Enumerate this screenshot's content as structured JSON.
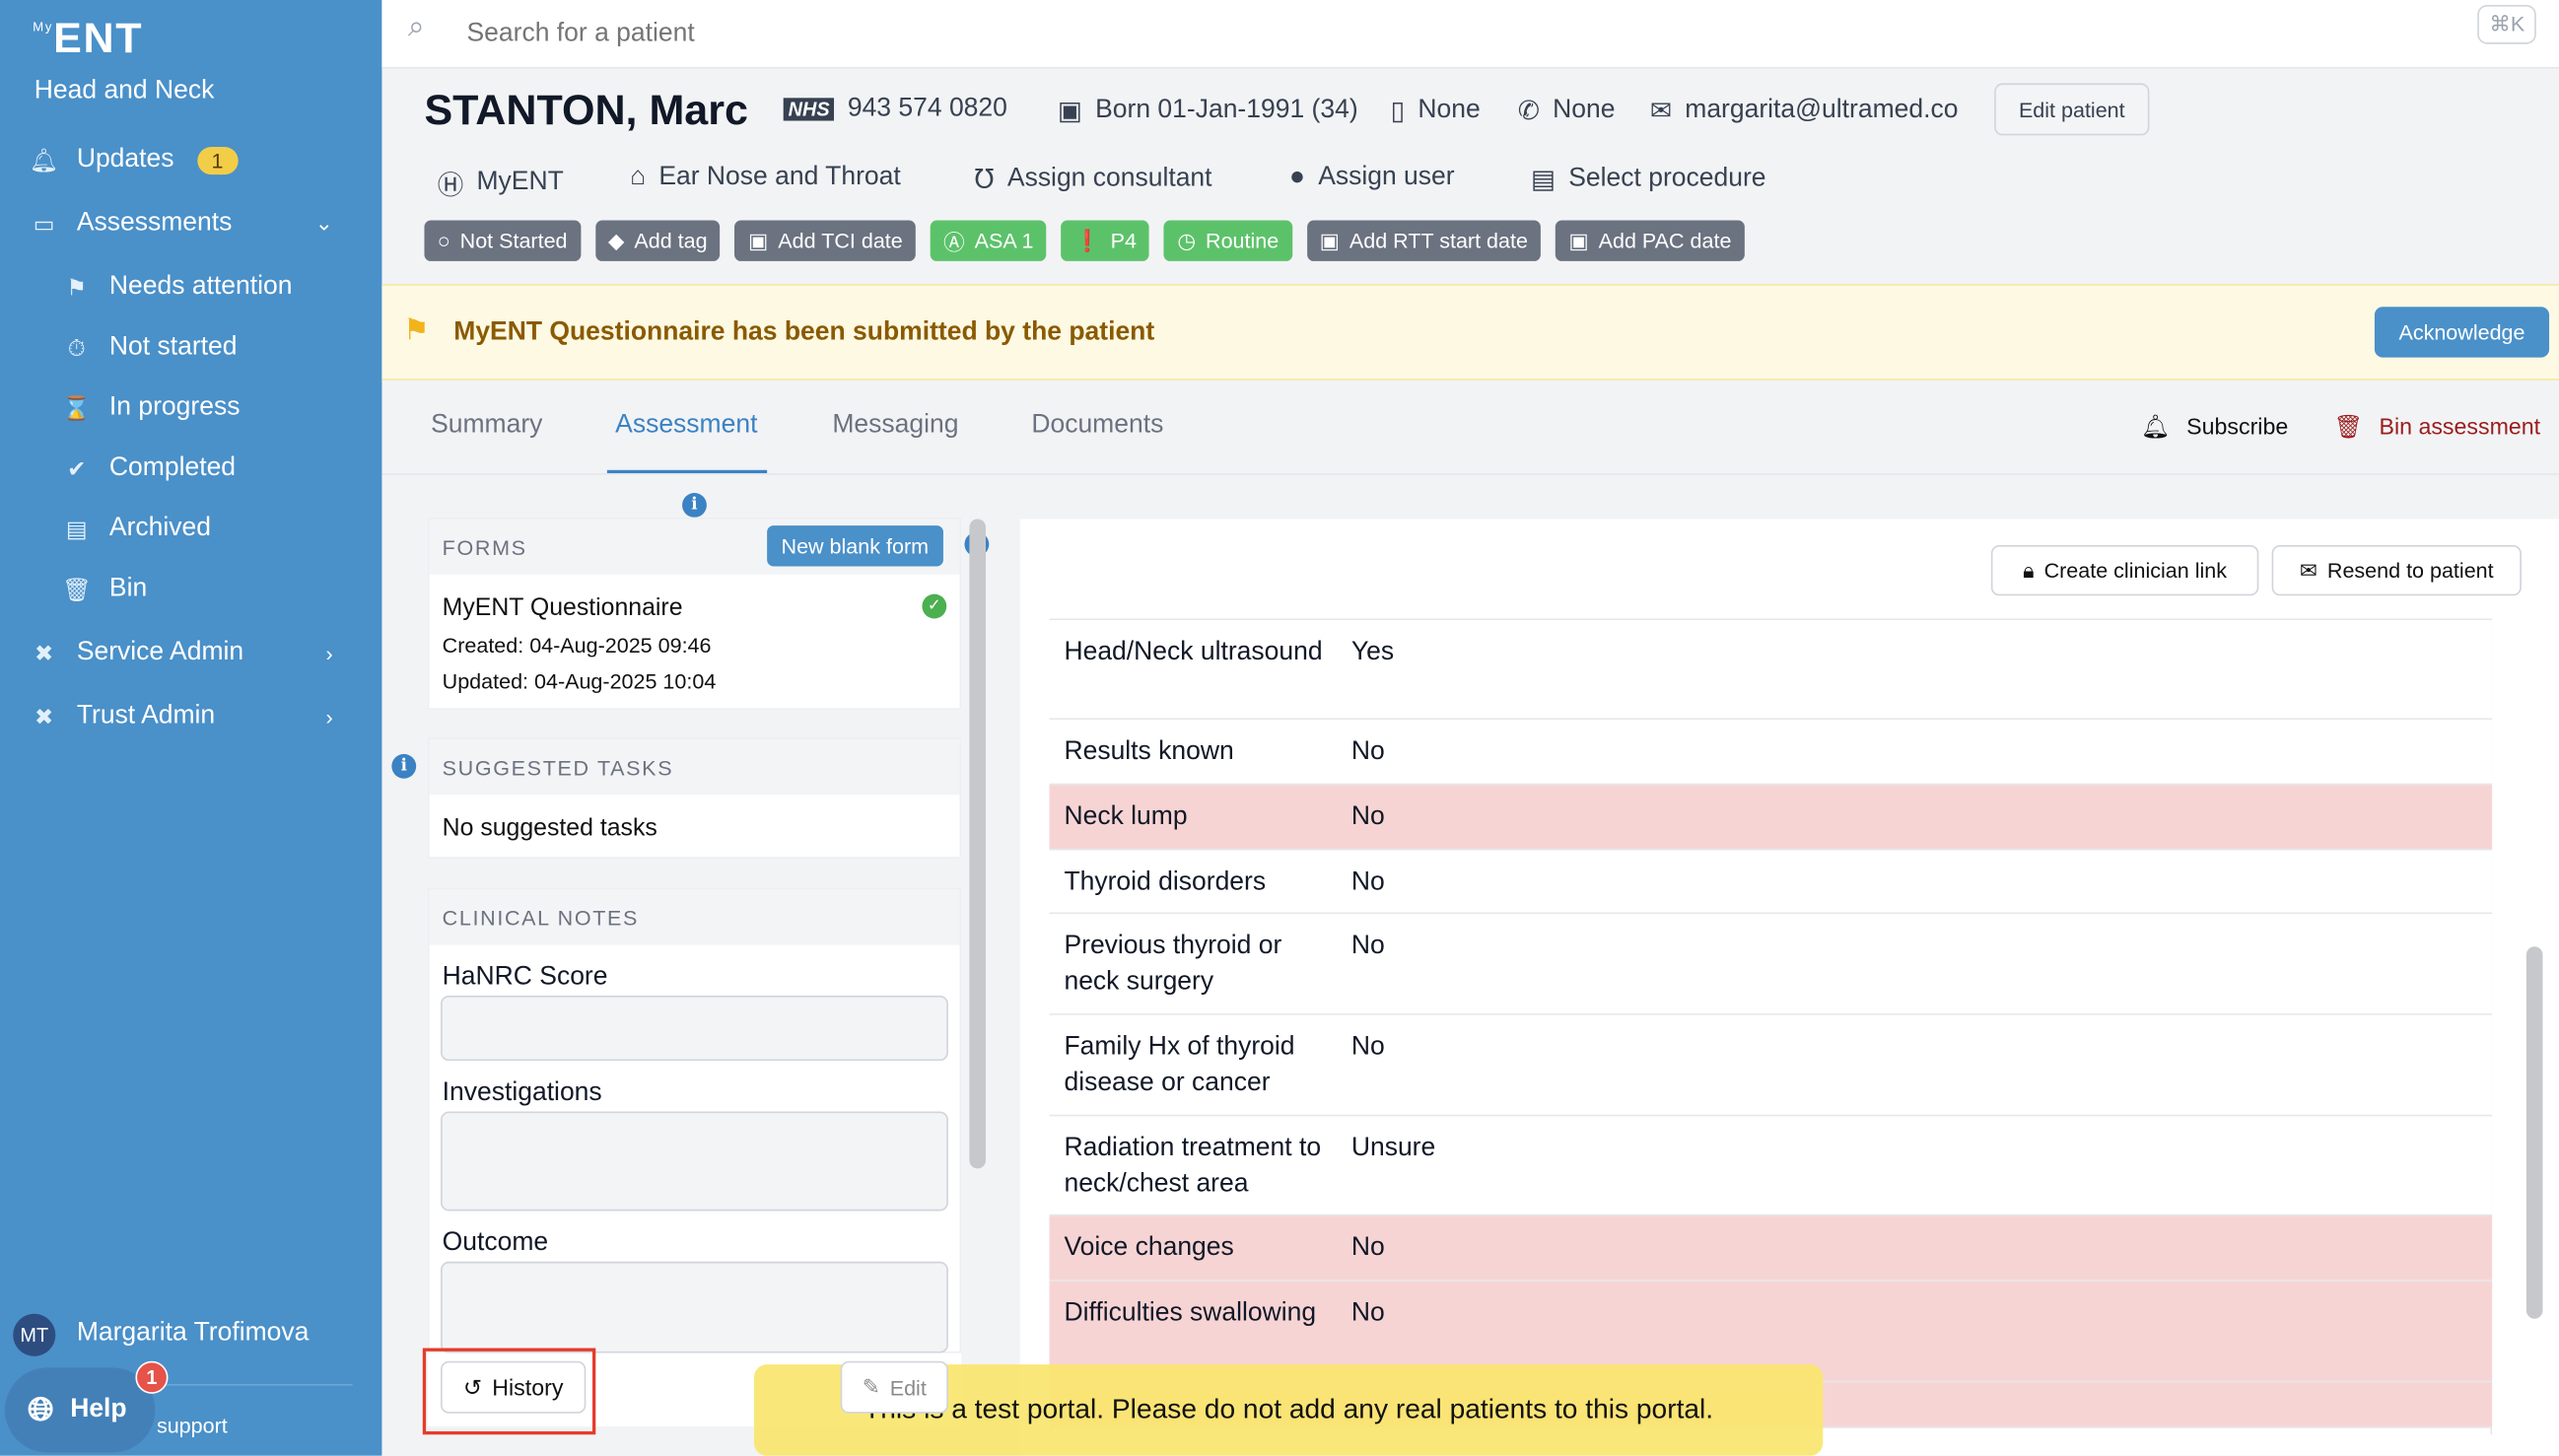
{
  "sidebar": {
    "logo": "ENT",
    "logo_prefix": "My",
    "org": "Head and Neck",
    "items": [
      {
        "label": "Updates",
        "badge": "1"
      },
      {
        "label": "Assessments"
      },
      {
        "label": "Needs attention"
      },
      {
        "label": "Not started"
      },
      {
        "label": "In progress"
      },
      {
        "label": "Completed"
      },
      {
        "label": "Archived"
      },
      {
        "label": "Bin"
      },
      {
        "label": "Service Admin"
      },
      {
        "label": "Trust Admin"
      }
    ],
    "user": {
      "initials": "MT",
      "name": "Margarita Trofimova"
    },
    "help": {
      "label": "Help",
      "badge": "1",
      "support": "support"
    }
  },
  "search": {
    "placeholder": "Search for a patient",
    "shortcut": "⌘K"
  },
  "patient": {
    "name": "STANTON, Marc",
    "nhs_logo": "NHS",
    "nhs": "943 574 0820",
    "born": "Born 01-Jan-1991 (34)",
    "mobile": "None",
    "phone": "None",
    "email": "margarita@ultramed.co",
    "edit": "Edit patient"
  },
  "links": [
    "MyENT",
    "Ear Nose and Throat",
    "Assign consultant",
    "Assign user",
    "Select procedure"
  ],
  "tags": [
    "Not Started",
    "Add tag",
    "Add TCI date",
    "ASA 1",
    "P4",
    "Routine",
    "Add RTT start date",
    "Add PAC date"
  ],
  "banner": {
    "text": "MyENT Questionnaire has been submitted by the patient",
    "action": "Acknowledge"
  },
  "tabs": [
    "Summary",
    "Assessment",
    "Messaging",
    "Documents"
  ],
  "actions": {
    "subscribe": "Subscribe",
    "bin": "Bin assessment"
  },
  "forms": {
    "header": "FORMS",
    "new": "New blank form",
    "title": "MyENT Questionnaire",
    "created": "Created: 04-Aug-2025 09:46",
    "updated": "Updated: 04-Aug-2025 10:04"
  },
  "suggested": {
    "header": "SUGGESTED TASKS",
    "empty": "No suggested tasks"
  },
  "notes": {
    "header": "CLINICAL NOTES",
    "fields": [
      "HaNRC Score",
      "Investigations",
      "Outcome"
    ],
    "history": "History",
    "edit": "Edit"
  },
  "right": {
    "clinician_link": "Create clinician link",
    "resend": "Resend to patient",
    "rows": [
      {
        "k": "Head/Neck ultrasound",
        "v": "Yes"
      },
      {
        "k": "Results known",
        "v": "No"
      },
      {
        "k": "Neck lump",
        "v": "No"
      },
      {
        "k": "Thyroid disorders",
        "v": "No"
      },
      {
        "k": "Previous thyroid or neck surgery",
        "v": "No"
      },
      {
        "k": "Family Hx of thyroid disease or cancer",
        "v": "No"
      },
      {
        "k": "Radiation treatment to neck/chest area",
        "v": "Unsure"
      },
      {
        "k": "Voice changes",
        "v": "No"
      },
      {
        "k": "Difficulties swallowing",
        "v": "No"
      }
    ]
  },
  "toast": "This is a test portal. Please do not add any real patients to this portal."
}
